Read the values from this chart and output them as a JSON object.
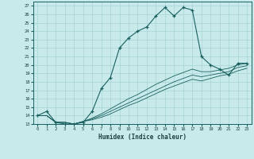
{
  "xlabel": "Humidex (Indice chaleur)",
  "background_color": "#c8eaea",
  "grid_color": "#a8d4d4",
  "line_color": "#1a6060",
  "xlim": [
    -0.5,
    23.5
  ],
  "ylim": [
    13,
    27.5
  ],
  "xticks": [
    0,
    1,
    2,
    3,
    4,
    5,
    6,
    7,
    8,
    9,
    10,
    11,
    12,
    13,
    14,
    15,
    16,
    17,
    18,
    19,
    20,
    21,
    22,
    23
  ],
  "yticks": [
    13,
    14,
    15,
    16,
    17,
    18,
    19,
    20,
    21,
    22,
    23,
    24,
    25,
    26,
    27
  ],
  "main_series": [
    14.0,
    14.5,
    13.2,
    13.0,
    13.0,
    13.2,
    14.5,
    17.2,
    18.5,
    22.0,
    23.2,
    24.0,
    24.5,
    25.8,
    26.8,
    25.8,
    26.8,
    26.5,
    21.0,
    20.0,
    19.5,
    18.8,
    20.2,
    20.2
  ],
  "trend_series": [
    [
      14.0,
      14.0,
      13.2,
      13.2,
      13.0,
      13.3,
      13.7,
      14.2,
      14.8,
      15.4,
      16.0,
      16.5,
      17.1,
      17.7,
      18.2,
      18.7,
      19.1,
      19.5,
      19.2,
      19.2,
      19.4,
      19.6,
      20.0,
      20.2
    ],
    [
      14.0,
      14.0,
      13.2,
      13.2,
      13.0,
      13.3,
      13.6,
      14.0,
      14.5,
      15.0,
      15.5,
      16.0,
      16.5,
      17.0,
      17.5,
      18.0,
      18.4,
      18.8,
      18.6,
      18.8,
      19.0,
      19.2,
      19.7,
      19.9
    ],
    [
      14.0,
      14.0,
      13.2,
      13.2,
      13.0,
      13.3,
      13.5,
      13.8,
      14.2,
      14.7,
      15.2,
      15.6,
      16.1,
      16.6,
      17.1,
      17.5,
      17.9,
      18.3,
      18.1,
      18.4,
      18.7,
      18.9,
      19.3,
      19.6
    ]
  ]
}
